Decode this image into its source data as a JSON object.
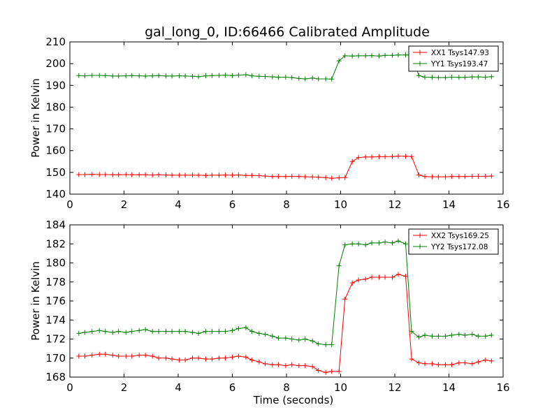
{
  "figure_title": "gal_long_0, ID:66466 Calibrated Amplitude",
  "chart_data": [
    {
      "type": "line",
      "ylabel": "Power in Kelvin",
      "xlabel": "",
      "xlim": [
        0,
        16
      ],
      "ylim": [
        140,
        210
      ],
      "xticks": [
        0,
        2,
        4,
        6,
        8,
        10,
        12,
        14,
        16
      ],
      "yticks": [
        140,
        150,
        160,
        170,
        180,
        190,
        200,
        210
      ],
      "legend": "top-right",
      "grid": false,
      "x": [
        0.33,
        0.55,
        0.82,
        1.09,
        1.31,
        1.58,
        1.8,
        2.07,
        2.29,
        2.56,
        2.79,
        3.05,
        3.28,
        3.55,
        3.77,
        4.04,
        4.26,
        4.53,
        4.75,
        5.02,
        5.25,
        5.51,
        5.74,
        6.0,
        6.23,
        6.5,
        6.72,
        6.99,
        7.21,
        7.48,
        7.7,
        7.97,
        8.2,
        8.46,
        8.69,
        8.96,
        9.18,
        9.45,
        9.67,
        9.94,
        10.16,
        10.43,
        10.66,
        10.92,
        11.15,
        11.42,
        11.64,
        11.91,
        12.13,
        12.4,
        12.62,
        12.89,
        13.11,
        13.38,
        13.61,
        13.87,
        14.1,
        14.37,
        14.59,
        14.86,
        15.08,
        15.35,
        15.57
      ],
      "series": [
        {
          "name": "XX1 Tsys147.93",
          "color": "#ff0000",
          "values": [
            149.0,
            149.0,
            149.1,
            149.0,
            149.0,
            148.9,
            148.9,
            149.0,
            148.9,
            148.9,
            148.9,
            148.8,
            148.9,
            148.8,
            148.7,
            148.7,
            148.7,
            148.7,
            148.7,
            148.6,
            148.7,
            148.7,
            148.8,
            148.7,
            148.8,
            148.6,
            148.6,
            148.5,
            148.3,
            148.1,
            148.1,
            148.1,
            148.2,
            148.1,
            148.0,
            147.9,
            147.8,
            147.6,
            147.3,
            147.5,
            147.6,
            155.0,
            156.8,
            157.1,
            157.1,
            157.2,
            157.2,
            157.3,
            157.5,
            157.4,
            157.3,
            148.8,
            148.1,
            148.0,
            148.0,
            148.0,
            148.1,
            148.1,
            148.1,
            148.2,
            148.2,
            148.2,
            148.3
          ]
        },
        {
          "name": "YY1 Tsys193.47",
          "color": "#008000",
          "values": [
            194.5,
            194.4,
            194.6,
            194.6,
            194.5,
            194.3,
            194.3,
            194.4,
            194.5,
            194.4,
            194.3,
            194.4,
            194.5,
            194.3,
            194.3,
            194.4,
            194.3,
            194.2,
            194.0,
            194.4,
            194.5,
            194.6,
            194.7,
            194.5,
            194.7,
            194.9,
            194.4,
            194.2,
            194.1,
            193.9,
            193.7,
            193.8,
            193.6,
            193.2,
            193.0,
            193.4,
            193.0,
            193.0,
            192.9,
            201.3,
            203.6,
            203.5,
            203.6,
            203.6,
            203.7,
            203.5,
            203.8,
            203.8,
            204.0,
            204.0,
            204.0,
            194.5,
            193.8,
            193.7,
            193.6,
            193.6,
            193.8,
            193.7,
            193.7,
            193.9,
            193.9,
            193.8,
            194.0
          ]
        }
      ]
    },
    {
      "type": "line",
      "ylabel": "Power in Kelvin",
      "xlabel": "Time (seconds)",
      "xlim": [
        0,
        16
      ],
      "ylim": [
        168,
        184
      ],
      "xticks": [
        0,
        2,
        4,
        6,
        8,
        10,
        12,
        14,
        16
      ],
      "yticks": [
        168,
        170,
        172,
        174,
        176,
        178,
        180,
        182,
        184
      ],
      "legend": "top-right",
      "grid": false,
      "x": [
        0.33,
        0.55,
        0.82,
        1.09,
        1.31,
        1.58,
        1.8,
        2.07,
        2.29,
        2.56,
        2.79,
        3.05,
        3.28,
        3.55,
        3.77,
        4.04,
        4.26,
        4.53,
        4.75,
        5.02,
        5.25,
        5.51,
        5.74,
        6.0,
        6.23,
        6.5,
        6.72,
        6.99,
        7.21,
        7.48,
        7.7,
        7.97,
        8.2,
        8.46,
        8.69,
        8.96,
        9.18,
        9.45,
        9.67,
        9.94,
        10.16,
        10.43,
        10.66,
        10.92,
        11.15,
        11.42,
        11.64,
        11.91,
        12.13,
        12.4,
        12.62,
        12.89,
        13.11,
        13.38,
        13.61,
        13.87,
        14.1,
        14.37,
        14.59,
        14.86,
        15.08,
        15.35,
        15.57
      ],
      "series": [
        {
          "name": "XX2 Tsys169.25",
          "color": "#ff0000",
          "values": [
            170.2,
            170.2,
            170.3,
            170.4,
            170.4,
            170.3,
            170.2,
            170.2,
            170.2,
            170.3,
            170.3,
            170.2,
            170.0,
            170.0,
            169.9,
            169.8,
            169.8,
            170.0,
            170.0,
            169.9,
            169.9,
            170.0,
            170.0,
            170.1,
            170.2,
            170.1,
            169.8,
            169.6,
            169.4,
            169.3,
            169.3,
            169.2,
            169.3,
            169.2,
            169.2,
            169.1,
            168.7,
            168.5,
            168.6,
            168.6,
            176.2,
            177.9,
            178.2,
            178.3,
            178.5,
            178.5,
            178.5,
            178.5,
            178.8,
            178.6,
            169.9,
            169.5,
            169.4,
            169.4,
            169.3,
            169.3,
            169.3,
            169.5,
            169.5,
            169.4,
            169.6,
            169.8,
            169.7
          ]
        },
        {
          "name": "YY2 Tsys172.08",
          "color": "#008000",
          "values": [
            172.6,
            172.7,
            172.8,
            172.9,
            172.8,
            172.7,
            172.8,
            172.7,
            172.8,
            172.9,
            173.0,
            172.8,
            172.8,
            172.8,
            172.8,
            172.8,
            172.8,
            172.7,
            172.6,
            172.8,
            172.8,
            172.8,
            172.8,
            172.9,
            173.1,
            173.2,
            172.8,
            172.6,
            172.5,
            172.3,
            172.1,
            172.1,
            172.0,
            171.9,
            172.0,
            171.8,
            171.5,
            171.4,
            171.4,
            179.7,
            181.9,
            182.0,
            182.0,
            181.9,
            182.1,
            182.1,
            182.2,
            182.1,
            182.3,
            182.0,
            172.8,
            172.2,
            172.4,
            172.3,
            172.3,
            172.3,
            172.4,
            172.5,
            172.4,
            172.5,
            172.3,
            172.3,
            172.4
          ]
        }
      ]
    }
  ]
}
